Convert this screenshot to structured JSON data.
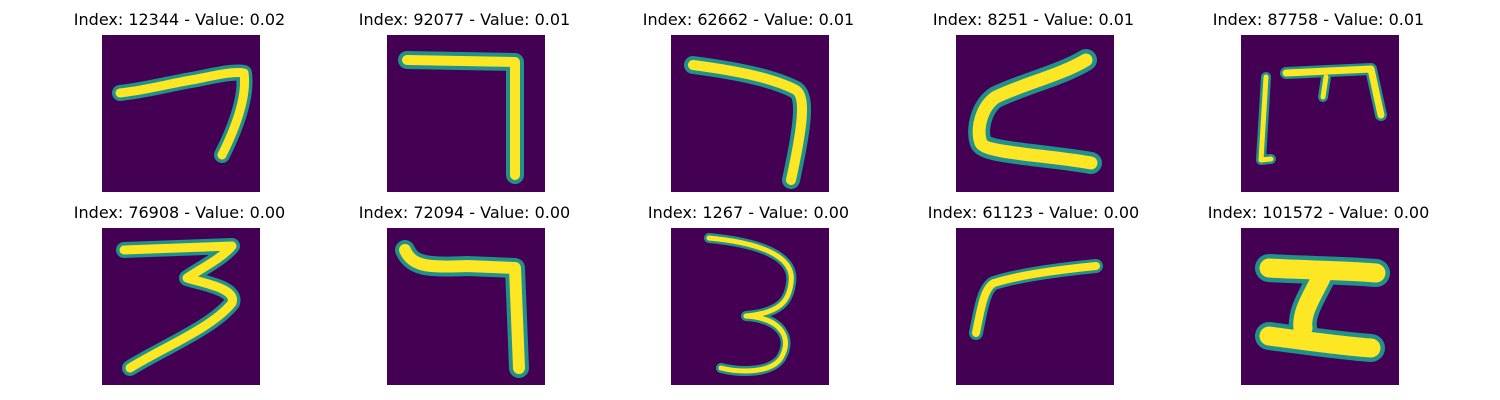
{
  "panels": [
    {
      "title": "Index: 12344 - Value: 0.02",
      "glyph": "seven-curved"
    },
    {
      "title": "Index: 92077 - Value: 0.01",
      "glyph": "seven-angular"
    },
    {
      "title": "Index: 62662 - Value: 0.01",
      "glyph": "seven-curved-2"
    },
    {
      "title": "Index: 8251 - Value: 0.01",
      "glyph": "z-shape"
    },
    {
      "title": "Index: 87758 - Value: 0.01",
      "glyph": "m-shape"
    },
    {
      "title": "Index: 76908 - Value: 0.00",
      "glyph": "three-flat"
    },
    {
      "title": "Index: 72094 - Value: 0.00",
      "glyph": "seven-hooked"
    },
    {
      "title": "Index: 1267 - Value: 0.00",
      "glyph": "three-round"
    },
    {
      "title": "Index: 61123 - Value: 0.00",
      "glyph": "seven-short"
    },
    {
      "title": "Index: 101572 - Value: 0.00",
      "glyph": "z-thick"
    }
  ],
  "colors": {
    "background": "#440154",
    "edge": "#21918c",
    "stroke": "#fde725"
  }
}
